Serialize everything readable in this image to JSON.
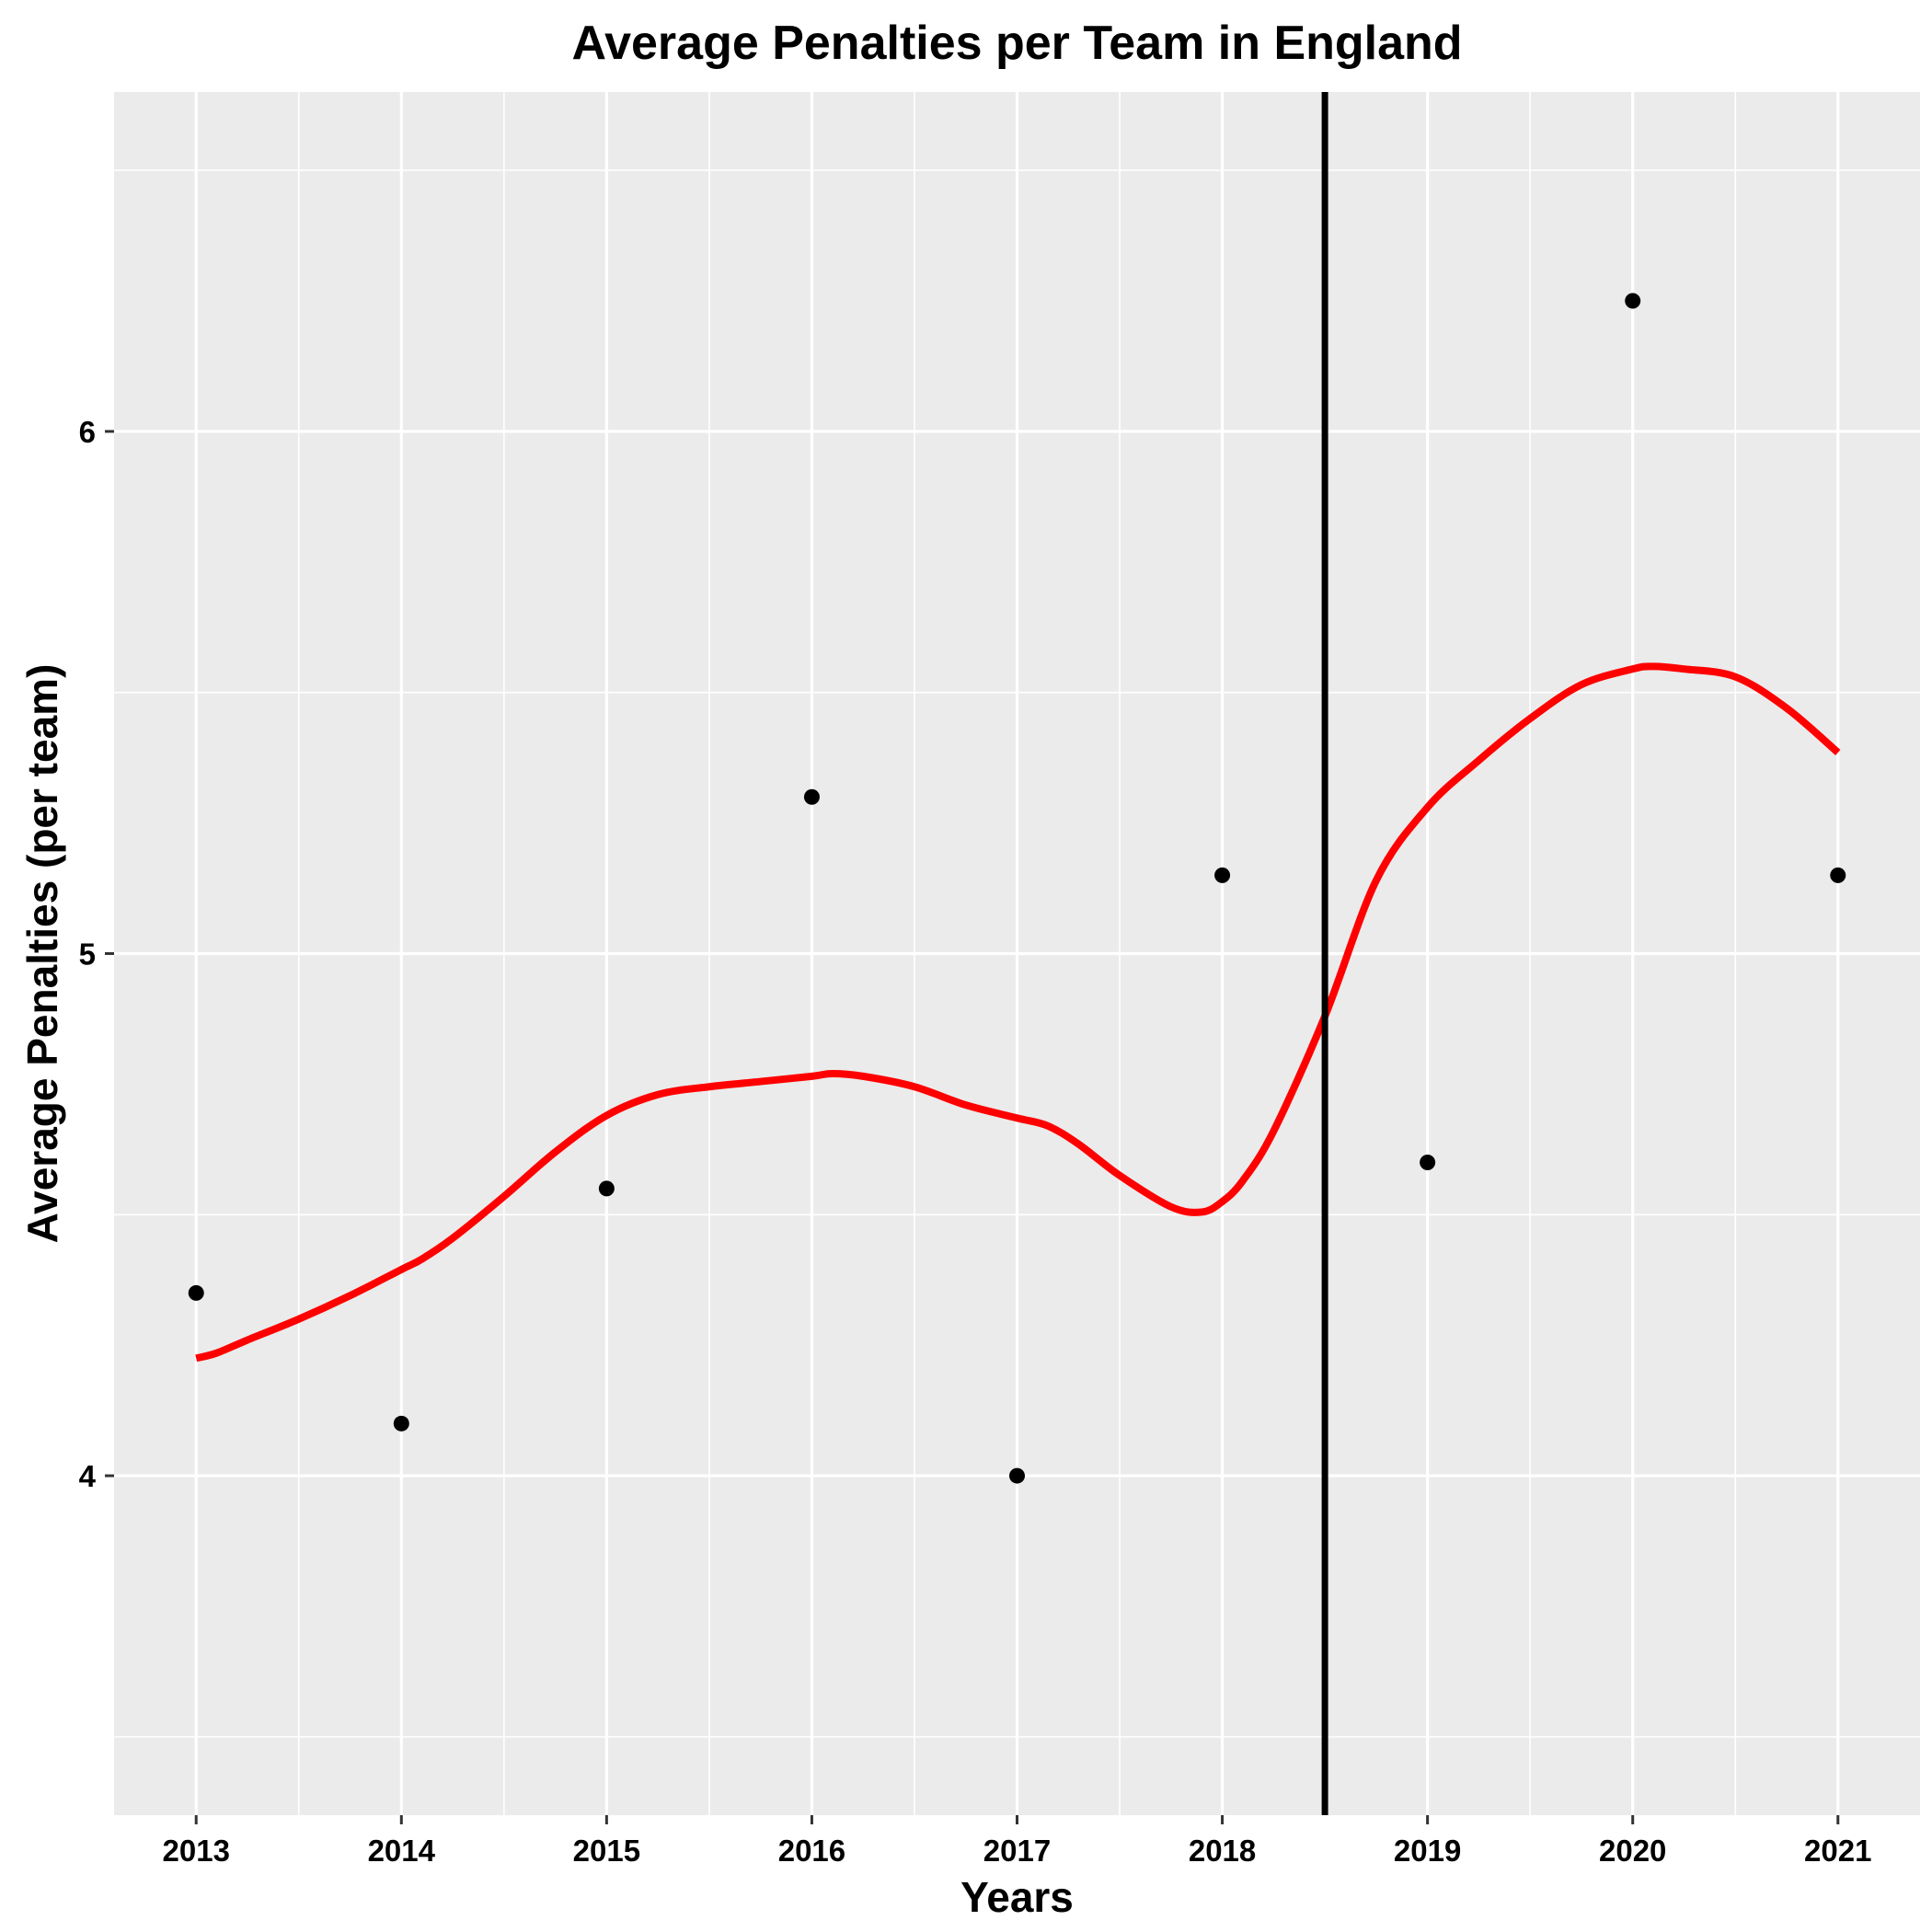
{
  "chart_data": {
    "type": "scatter",
    "title": "Average Penalties per Team in England",
    "xlabel": "Years",
    "ylabel": "Average Penalties (per team)",
    "x": [
      2013,
      2014,
      2015,
      2016,
      2017,
      2018,
      2019,
      2020,
      2021
    ],
    "y": [
      4.35,
      4.1,
      4.55,
      5.3,
      4.0,
      5.15,
      4.6,
      6.25,
      5.15
    ],
    "xlim": [
      2012.6,
      2021.4
    ],
    "ylim": [
      3.35,
      6.65
    ],
    "x_ticks": [
      "2013",
      "2014",
      "2015",
      "2016",
      "2017",
      "2018",
      "2019",
      "2020",
      "2021"
    ],
    "y_ticks": [
      "4",
      "5",
      "6"
    ],
    "smooth_curve": {
      "x": [
        2013,
        2013.1,
        2013.25,
        2013.5,
        2013.75,
        2014,
        2014.1,
        2014.25,
        2014.5,
        2014.75,
        2015,
        2015.25,
        2015.5,
        2015.75,
        2016,
        2016.1,
        2016.25,
        2016.5,
        2016.75,
        2017,
        2017.15,
        2017.3,
        2017.5,
        2017.75,
        2017.9,
        2018,
        2018.1,
        2018.25,
        2018.5,
        2018.75,
        2019,
        2019.25,
        2019.5,
        2019.75,
        2020,
        2020.1,
        2020.25,
        2020.5,
        2020.75,
        2021
      ],
      "y": [
        4.225,
        4.235,
        4.26,
        4.3,
        4.345,
        4.395,
        4.415,
        4.455,
        4.535,
        4.62,
        4.69,
        4.73,
        4.745,
        4.755,
        4.765,
        4.77,
        4.765,
        4.745,
        4.71,
        4.685,
        4.67,
        4.635,
        4.575,
        4.515,
        4.505,
        4.525,
        4.565,
        4.66,
        4.88,
        5.14,
        5.28,
        5.37,
        5.45,
        5.515,
        5.545,
        5.55,
        5.545,
        5.53,
        5.47,
        5.385
      ],
      "color": "#FF0000"
    },
    "vline": {
      "x": 2018.5,
      "color": "#000000"
    },
    "point_color": "#000000",
    "panel_background": "#EBEBEB",
    "grid": true,
    "legend": "none"
  }
}
